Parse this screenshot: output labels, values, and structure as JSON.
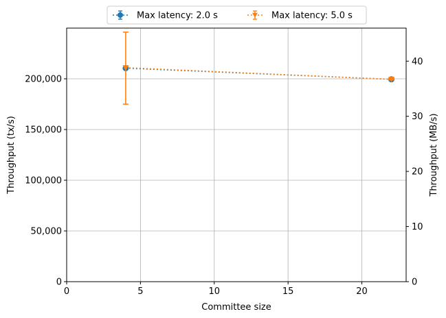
{
  "chart_data": {
    "type": "line",
    "xlabel": "Committee size",
    "ylabel": "Throughput (tx/s)",
    "ylabel_right": "Throughput (MB/s)",
    "xlim": [
      0,
      23
    ],
    "ylim": [
      0,
      250000
    ],
    "ylim_right": [
      0,
      46
    ],
    "x_ticks": [
      0,
      5,
      10,
      15,
      20
    ],
    "x_tick_labels": [
      "0",
      "5",
      "10",
      "15",
      "20"
    ],
    "y_ticks": [
      0,
      50000,
      100000,
      150000,
      200000
    ],
    "y_tick_labels": [
      "0",
      "50,000",
      "100,000",
      "150,000",
      "200,000"
    ],
    "y_right_ticks": [
      0,
      10,
      20,
      30,
      40
    ],
    "y_right_tick_labels": [
      "0",
      "10",
      "20",
      "30",
      "40"
    ],
    "grid": true,
    "legend_position": "top-center",
    "series": [
      {
        "name": "Max latency: 2.0 s",
        "color": "#1f77b4",
        "marker": "circle",
        "linestyle": "dotted",
        "x": [
          4,
          22
        ],
        "y": [
          210500,
          199500
        ],
        "err_low": [
          210000,
          199500
        ],
        "err_high": [
          211000,
          199500
        ]
      },
      {
        "name": "Max latency: 5.0 s",
        "color": "#ff7f0e",
        "marker": "triangle-down",
        "linestyle": "dotted",
        "x": [
          4,
          22
        ],
        "y": [
          211000,
          199500
        ],
        "err_low": [
          175000,
          199000
        ],
        "err_high": [
          246000,
          200000
        ]
      }
    ]
  }
}
